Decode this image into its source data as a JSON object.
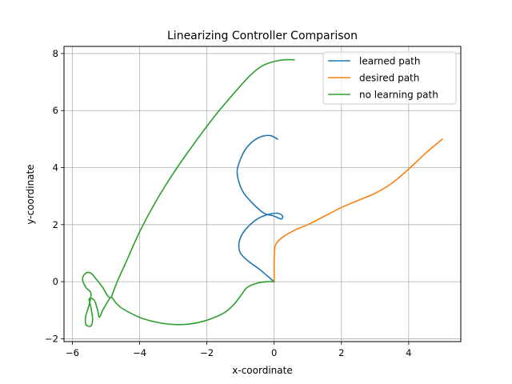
{
  "chart_data": {
    "type": "line",
    "title": "Linearizing Controller Comparison",
    "xlabel": "x-coordinate",
    "ylabel": "y-coordinate",
    "xlim": [
      -6.25,
      5.55
    ],
    "ylim": [
      -2.1,
      8.25
    ],
    "xticks": [
      -6,
      -4,
      -2,
      0,
      2,
      4
    ],
    "yticks": [
      -2,
      0,
      2,
      4,
      6,
      8
    ],
    "xtick_labels": [
      "−6",
      "−4",
      "−2",
      "0",
      "2",
      "4"
    ],
    "ytick_labels": [
      "−2",
      "0",
      "2",
      "4",
      "6",
      "8"
    ],
    "grid": true,
    "legend_position": "top-right",
    "series": [
      {
        "name": "learned path",
        "color": "#1f77b4",
        "points": [
          [
            0.0,
            0.0
          ],
          [
            -0.2,
            0.2
          ],
          [
            -0.45,
            0.45
          ],
          [
            -0.75,
            0.7
          ],
          [
            -1.0,
            1.0
          ],
          [
            -1.05,
            1.3
          ],
          [
            -0.98,
            1.6
          ],
          [
            -0.8,
            1.9
          ],
          [
            -0.5,
            2.2
          ],
          [
            -0.2,
            2.35
          ],
          [
            0.1,
            2.4
          ],
          [
            0.25,
            2.3
          ],
          [
            0.2,
            2.2
          ],
          [
            0.0,
            2.3
          ],
          [
            -0.3,
            2.4
          ],
          [
            -0.6,
            2.7
          ],
          [
            -0.9,
            3.1
          ],
          [
            -1.05,
            3.5
          ],
          [
            -1.1,
            3.9
          ],
          [
            -1.0,
            4.3
          ],
          [
            -0.85,
            4.65
          ],
          [
            -0.6,
            4.95
          ],
          [
            -0.35,
            5.1
          ],
          [
            -0.1,
            5.12
          ],
          [
            0.1,
            5.0
          ]
        ]
      },
      {
        "name": "desired path",
        "color": "#ff7f0e",
        "points": [
          [
            0.0,
            0.0
          ],
          [
            0.0,
            0.4
          ],
          [
            0.0,
            0.8
          ],
          [
            0.02,
            1.2
          ],
          [
            0.1,
            1.4
          ],
          [
            0.3,
            1.6
          ],
          [
            0.6,
            1.8
          ],
          [
            1.0,
            2.0
          ],
          [
            1.5,
            2.3
          ],
          [
            2.0,
            2.6
          ],
          [
            2.5,
            2.85
          ],
          [
            3.0,
            3.1
          ],
          [
            3.5,
            3.45
          ],
          [
            4.0,
            3.95
          ],
          [
            4.5,
            4.5
          ],
          [
            5.0,
            5.0
          ]
        ]
      },
      {
        "name": "no learning path",
        "color": "#2ca02c",
        "points": [
          [
            0.6,
            7.78
          ],
          [
            0.3,
            7.78
          ],
          [
            0.0,
            7.72
          ],
          [
            -0.3,
            7.6
          ],
          [
            -0.5,
            7.45
          ],
          [
            -0.7,
            7.25
          ],
          [
            -0.9,
            7.0
          ],
          [
            -1.2,
            6.6
          ],
          [
            -1.6,
            6.05
          ],
          [
            -2.0,
            5.45
          ],
          [
            -2.5,
            4.65
          ],
          [
            -3.0,
            3.8
          ],
          [
            -3.5,
            2.85
          ],
          [
            -4.0,
            1.75
          ],
          [
            -4.4,
            0.7
          ],
          [
            -4.65,
            0.05
          ],
          [
            -4.8,
            -0.4
          ],
          [
            -4.85,
            -0.55
          ],
          [
            -4.95,
            -0.5
          ],
          [
            -5.1,
            -0.2
          ],
          [
            -5.3,
            0.1
          ],
          [
            -5.45,
            0.3
          ],
          [
            -5.6,
            0.3
          ],
          [
            -5.7,
            0.1
          ],
          [
            -5.6,
            -0.2
          ],
          [
            -5.45,
            -0.4
          ],
          [
            -5.5,
            -0.8
          ],
          [
            -5.6,
            -1.2
          ],
          [
            -5.6,
            -1.5
          ],
          [
            -5.45,
            -1.55
          ],
          [
            -5.4,
            -1.3
          ],
          [
            -5.45,
            -0.9
          ],
          [
            -5.5,
            -0.6
          ],
          [
            -5.35,
            -0.65
          ],
          [
            -5.25,
            -1.0
          ],
          [
            -5.2,
            -1.25
          ],
          [
            -5.1,
            -1.0
          ],
          [
            -5.0,
            -0.8
          ],
          [
            -4.85,
            -0.55
          ],
          [
            -4.7,
            -0.75
          ],
          [
            -4.5,
            -0.95
          ],
          [
            -4.0,
            -1.25
          ],
          [
            -3.5,
            -1.42
          ],
          [
            -3.0,
            -1.5
          ],
          [
            -2.5,
            -1.48
          ],
          [
            -2.0,
            -1.35
          ],
          [
            -1.5,
            -1.1
          ],
          [
            -1.2,
            -0.8
          ],
          [
            -1.0,
            -0.5
          ],
          [
            -0.8,
            -0.2
          ],
          [
            -0.5,
            -0.05
          ],
          [
            -0.2,
            0.0
          ],
          [
            0.0,
            0.0
          ]
        ]
      }
    ]
  }
}
